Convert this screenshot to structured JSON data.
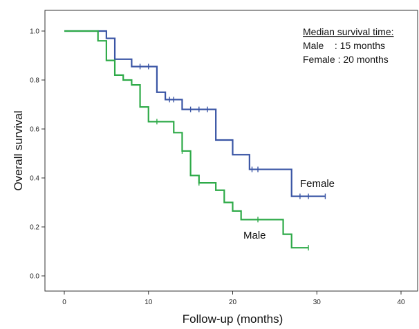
{
  "chart_data": {
    "type": "line",
    "subtype": "kaplan-meier-step",
    "title": "",
    "xlabel": "Follow-up (months)",
    "ylabel": "Overall survival",
    "xlim": [
      0,
      40
    ],
    "ylim": [
      0.0,
      1.0
    ],
    "xticks": [
      0,
      10,
      20,
      30,
      40
    ],
    "yticks": [
      0.0,
      0.2,
      0.4,
      0.6,
      0.8,
      1.0
    ],
    "ytick_labels": [
      "0.0",
      "0.2",
      "0.4",
      "0.6",
      "0.8",
      "1.0"
    ],
    "grid": false,
    "annotation": {
      "heading": "Median survival time:",
      "lines": [
        "Male    : 15 months",
        "Female : 20 months"
      ]
    },
    "series": [
      {
        "name": "Female",
        "color": "#3a55a5",
        "steps": [
          [
            0,
            1.0
          ],
          [
            5,
            0.97
          ],
          [
            6,
            0.885
          ],
          [
            8,
            0.855
          ],
          [
            11,
            0.75
          ],
          [
            12,
            0.72
          ],
          [
            14,
            0.68
          ],
          [
            18,
            0.555
          ],
          [
            20,
            0.495
          ],
          [
            22,
            0.435
          ],
          [
            27,
            0.325
          ],
          [
            31,
            0.325
          ]
        ],
        "censored": [
          [
            9,
            0.855
          ],
          [
            10,
            0.855
          ],
          [
            12.5,
            0.72
          ],
          [
            13,
            0.72
          ],
          [
            15,
            0.68
          ],
          [
            16,
            0.68
          ],
          [
            17,
            0.68
          ],
          [
            22.3,
            0.435
          ],
          [
            23,
            0.435
          ],
          [
            28,
            0.325
          ],
          [
            29,
            0.325
          ],
          [
            31,
            0.325
          ]
        ]
      },
      {
        "name": "Male",
        "color": "#2eaa48",
        "steps": [
          [
            0,
            1.0
          ],
          [
            4,
            0.96
          ],
          [
            5,
            0.88
          ],
          [
            6,
            0.82
          ],
          [
            7,
            0.8
          ],
          [
            8,
            0.78
          ],
          [
            9,
            0.69
          ],
          [
            10,
            0.63
          ],
          [
            13,
            0.585
          ],
          [
            14,
            0.51
          ],
          [
            15,
            0.41
          ],
          [
            16,
            0.38
          ],
          [
            18,
            0.35
          ],
          [
            19,
            0.3
          ],
          [
            20,
            0.265
          ],
          [
            21,
            0.23
          ],
          [
            26,
            0.17
          ],
          [
            27,
            0.115
          ],
          [
            29,
            0.115
          ]
        ],
        "censored": [
          [
            11,
            0.63
          ],
          [
            14,
            0.51
          ],
          [
            16,
            0.38
          ],
          [
            23,
            0.23
          ],
          [
            29,
            0.115
          ]
        ]
      }
    ]
  }
}
